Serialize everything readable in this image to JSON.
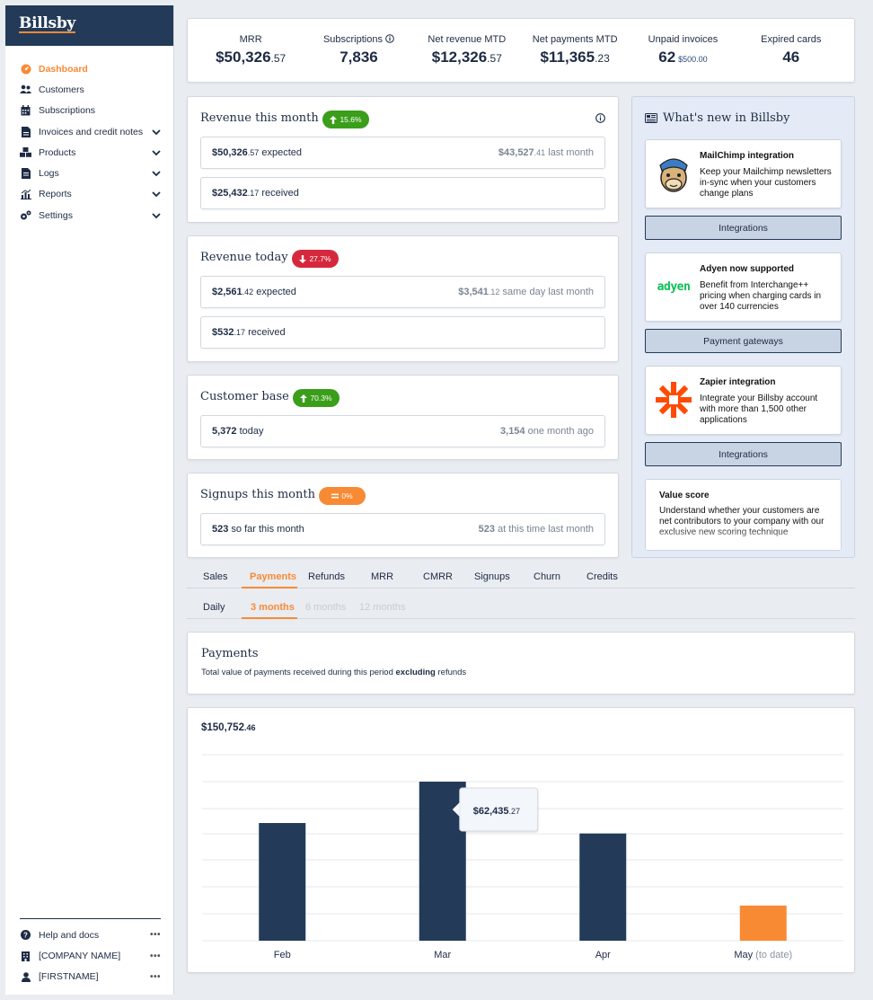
{
  "app": {
    "brand": "Billsby"
  },
  "sidebar": {
    "items": [
      {
        "label": "Dashboard",
        "icon": "dashboard-icon",
        "active": true,
        "has_chevron": false
      },
      {
        "label": "Customers",
        "icon": "users-icon",
        "active": false,
        "has_chevron": false
      },
      {
        "label": "Subscriptions",
        "icon": "calendar-icon",
        "active": false,
        "has_chevron": false
      },
      {
        "label": "Invoices and credit notes",
        "icon": "invoice-icon",
        "active": false,
        "has_chevron": true
      },
      {
        "label": "Products",
        "icon": "boxes-icon",
        "active": false,
        "has_chevron": true
      },
      {
        "label": "Logs",
        "icon": "file-icon",
        "active": false,
        "has_chevron": true
      },
      {
        "label": "Reports",
        "icon": "chart-icon",
        "active": false,
        "has_chevron": true
      },
      {
        "label": "Settings",
        "icon": "cogs-icon",
        "active": false,
        "has_chevron": true
      }
    ],
    "bottom": [
      {
        "label": "Help and docs",
        "icon": "help-icon"
      },
      {
        "label": "[COMPANY NAME]",
        "icon": "building-icon"
      },
      {
        "label": "[FIRSTNAME]",
        "icon": "user-icon"
      }
    ],
    "more_label": "•••"
  },
  "kpis": {
    "mrr": {
      "label": "MRR",
      "value": "$50,326",
      "cents": ".57"
    },
    "subscriptions": {
      "label": "Subscriptions",
      "value": "7,836"
    },
    "net_revenue": {
      "label": "Net revenue MTD",
      "value": "$12,326",
      "cents": ".57"
    },
    "net_payments": {
      "label": "Net payments MTD",
      "value": "$11,365",
      "cents": ".23"
    },
    "unpaid": {
      "label": "Unpaid invoices",
      "value": "62",
      "sub": "$500.00"
    },
    "expired": {
      "label": "Expired cards",
      "value": "46"
    }
  },
  "revenue_month": {
    "title": "Revenue this month",
    "badge": "15.6%",
    "expected_value": "$50,326",
    "expected_cents": ".57",
    "expected_label": "expected",
    "last_value": "$43,527",
    "last_cents": ".41",
    "last_label": "last month",
    "received_value": "$25,432",
    "received_cents": ".17",
    "received_label": "received"
  },
  "revenue_today": {
    "title": "Revenue today",
    "badge": "27.7%",
    "expected_value": "$2,561",
    "expected_cents": ".42",
    "expected_label": "expected",
    "last_value": "$3,541",
    "last_cents": ".12",
    "last_label": "same day last month",
    "received_value": "$532",
    "received_cents": ".17",
    "received_label": "received"
  },
  "customer_base": {
    "title": "Customer base",
    "badge": "70.3%",
    "today_value": "5,372",
    "today_label": "today",
    "ago_value": "3,154",
    "ago_label": "one month ago"
  },
  "signups": {
    "title": "Signups this month",
    "badge": "0%",
    "sofar_value": "523",
    "sofar_label": "so far this month",
    "last_value": "523",
    "last_label": "at this time last month"
  },
  "whats_new": {
    "title": "What's new in Billsby",
    "cards": [
      {
        "title": "MailChimp integration",
        "desc": "Keep your Mailchimp newsletters in-sync when your customers change plans",
        "button": "Integrations"
      },
      {
        "title": "Adyen now supported",
        "desc": "Benefit from Interchange++ pricing when charging cards in over 140 currencies",
        "button": "Payment gateways",
        "logo_text": "adyen"
      },
      {
        "title": "Zapier integration",
        "desc": "Integrate your Billsby account with more than 1,500 other applications",
        "button": "Integrations"
      }
    ],
    "value_score": {
      "title": "Value score",
      "desc": "Understand whether your customers are net contributors to your company with our exclusive new scoring technique"
    }
  },
  "tabs": [
    "Sales",
    "Payments",
    "Refunds",
    "MRR",
    "CMRR",
    "Signups",
    "Churn",
    "Credits"
  ],
  "active_tab": "Payments",
  "subtabs": [
    "Daily",
    "3 months",
    "6 months",
    "12 months"
  ],
  "active_subtab": "3 months",
  "payments": {
    "title": "Payments",
    "desc_prefix": "Total value of payments received during this period",
    "desc_bold": "excluding",
    "desc_suffix": "refunds"
  },
  "chart_data": {
    "type": "bar",
    "total_value": "$150,752",
    "total_cents": ".46",
    "categories": [
      "Feb",
      "Mar",
      "Apr",
      "May"
    ],
    "category_suffix": [
      "",
      "",
      "",
      "(to date)"
    ],
    "values": [
      46200,
      62435.27,
      42100,
      13800
    ],
    "bar_colors": [
      "#233a59",
      "#233a59",
      "#233a59",
      "#f98a34"
    ],
    "ylim": [
      0,
      62435.27
    ],
    "tooltip": {
      "category": "Mar",
      "value": "$62,435",
      "cents": ".27"
    }
  }
}
